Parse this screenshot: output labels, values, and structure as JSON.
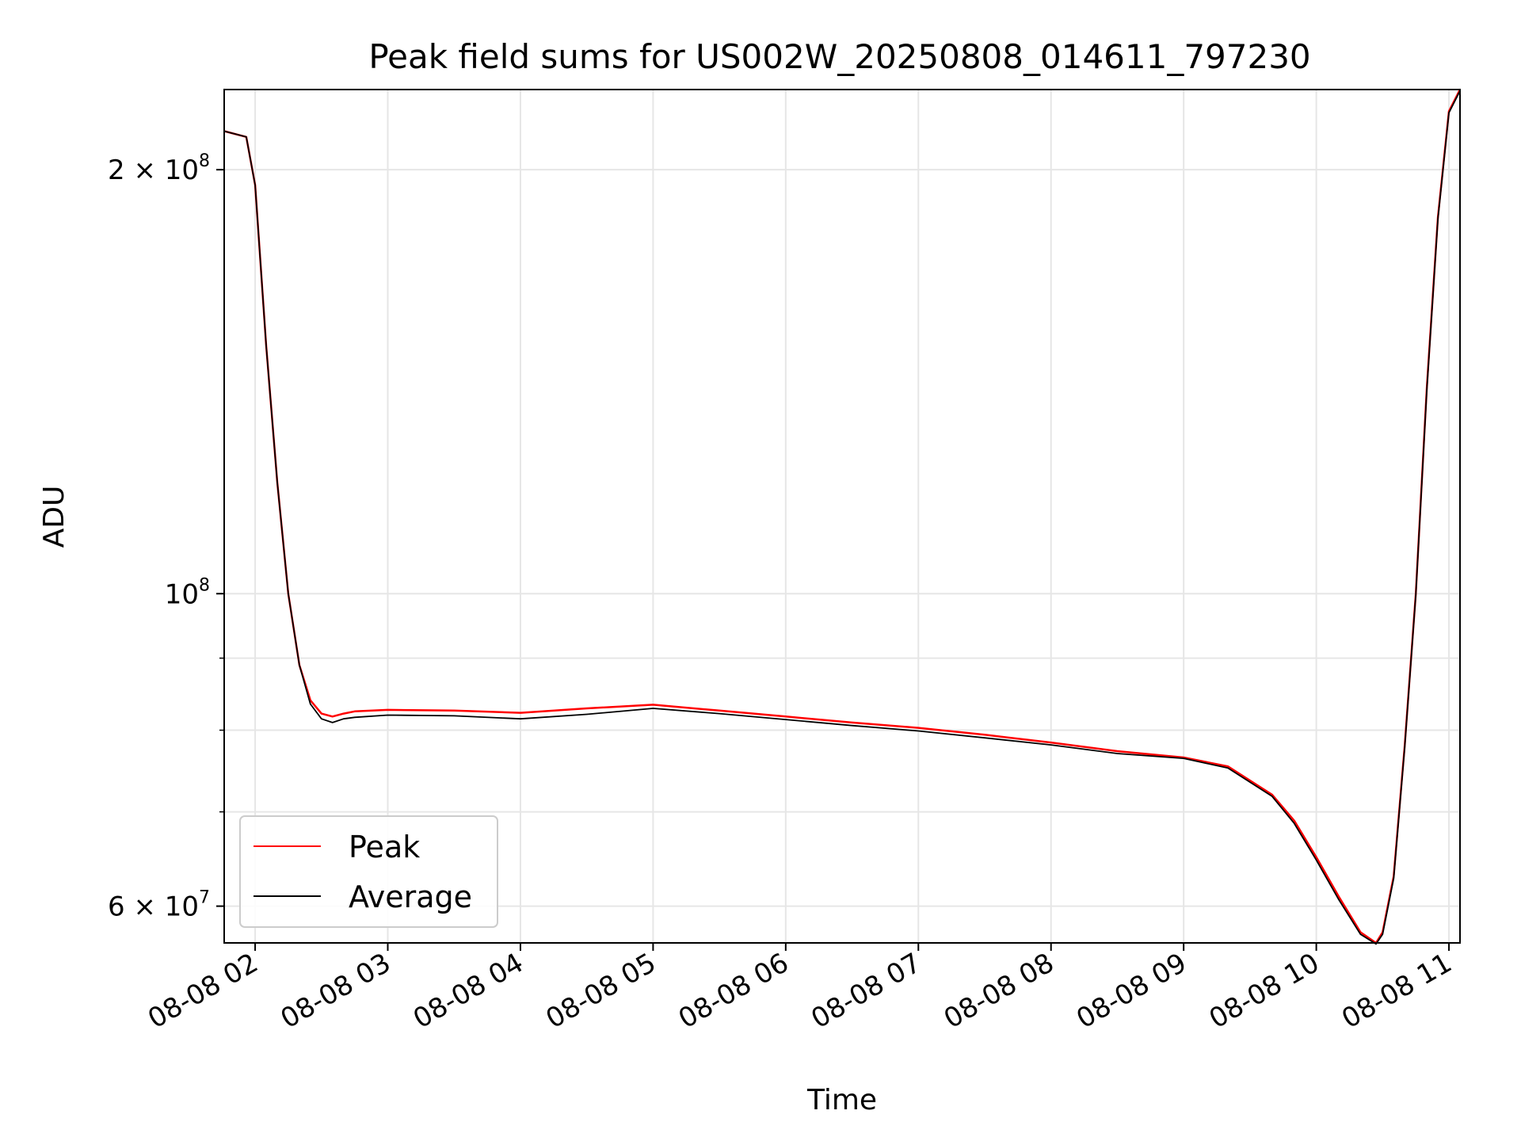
{
  "chart_data": {
    "type": "line",
    "title": "Peak field sums for US002W_20250808_014611_797230",
    "xlabel": "Time",
    "ylabel": "ADU",
    "y_scale": "log",
    "ylim": [
      56500000,
      228000000
    ],
    "xlim": [
      "2025-08-08 01:46",
      "2025-08-08 11:05"
    ],
    "grid": true,
    "legend_position": "lower-left",
    "x_ticks": [
      "08-08 02",
      "08-08 03",
      "08-08 04",
      "08-08 05",
      "08-08 06",
      "08-08 07",
      "08-08 08",
      "08-08 09",
      "08-08 10",
      "08-08 11"
    ],
    "y_ticks": [
      {
        "value": 200000000,
        "mantissa": "2",
        "exponent": "8"
      },
      {
        "value": 100000000,
        "mantissa": "",
        "exponent": "8"
      },
      {
        "value": 60000000,
        "mantissa": "6",
        "exponent": "7"
      }
    ],
    "series": [
      {
        "name": "Peak",
        "color": "#ff0000",
        "x": [
          "2025-08-08 01:46",
          "2025-08-08 01:56",
          "2025-08-08 02:00",
          "2025-08-08 02:05",
          "2025-08-08 02:10",
          "2025-08-08 02:15",
          "2025-08-08 02:20",
          "2025-08-08 02:25",
          "2025-08-08 02:30",
          "2025-08-08 02:35",
          "2025-08-08 02:40",
          "2025-08-08 02:45",
          "2025-08-08 03:00",
          "2025-08-08 03:30",
          "2025-08-08 04:00",
          "2025-08-08 04:30",
          "2025-08-08 05:00",
          "2025-08-08 05:30",
          "2025-08-08 06:00",
          "2025-08-08 06:30",
          "2025-08-08 07:00",
          "2025-08-08 07:30",
          "2025-08-08 08:00",
          "2025-08-08 08:30",
          "2025-08-08 09:00",
          "2025-08-08 09:20",
          "2025-08-08 09:40",
          "2025-08-08 09:50",
          "2025-08-08 10:00",
          "2025-08-08 10:10",
          "2025-08-08 10:20",
          "2025-08-08 10:27",
          "2025-08-08 10:30",
          "2025-08-08 10:35",
          "2025-08-08 10:40",
          "2025-08-08 10:45",
          "2025-08-08 10:50",
          "2025-08-08 10:55",
          "2025-08-08 11:00",
          "2025-08-08 11:05"
        ],
        "values": [
          213000000,
          211000000,
          195000000,
          150000000,
          120000000,
          100000000,
          89000000,
          84000000,
          82200000,
          81800000,
          82200000,
          82500000,
          82700000,
          82600000,
          82300000,
          82900000,
          83400000,
          82600000,
          81800000,
          81000000,
          80300000,
          79400000,
          78400000,
          77300000,
          76500000,
          75400000,
          72000000,
          69000000,
          65000000,
          61000000,
          57500000,
          56500000,
          57500000,
          63000000,
          78000000,
          100000000,
          140000000,
          185000000,
          220000000,
          228000000
        ]
      },
      {
        "name": "Average",
        "color": "#000000",
        "x": [
          "2025-08-08 01:46",
          "2025-08-08 01:56",
          "2025-08-08 02:00",
          "2025-08-08 02:05",
          "2025-08-08 02:10",
          "2025-08-08 02:15",
          "2025-08-08 02:20",
          "2025-08-08 02:25",
          "2025-08-08 02:30",
          "2025-08-08 02:35",
          "2025-08-08 02:40",
          "2025-08-08 02:45",
          "2025-08-08 03:00",
          "2025-08-08 03:30",
          "2025-08-08 04:00",
          "2025-08-08 04:30",
          "2025-08-08 05:00",
          "2025-08-08 05:30",
          "2025-08-08 06:00",
          "2025-08-08 06:30",
          "2025-08-08 07:00",
          "2025-08-08 07:30",
          "2025-08-08 08:00",
          "2025-08-08 08:30",
          "2025-08-08 09:00",
          "2025-08-08 09:20",
          "2025-08-08 09:40",
          "2025-08-08 09:50",
          "2025-08-08 10:00",
          "2025-08-08 10:10",
          "2025-08-08 10:20",
          "2025-08-08 10:27",
          "2025-08-08 10:30",
          "2025-08-08 10:35",
          "2025-08-08 10:40",
          "2025-08-08 10:45",
          "2025-08-08 10:50",
          "2025-08-08 10:55",
          "2025-08-08 11:00",
          "2025-08-08 11:05"
        ],
        "values": [
          213000000,
          211000000,
          195000000,
          150000000,
          120000000,
          100000000,
          89000000,
          83500000,
          81500000,
          81000000,
          81500000,
          81700000,
          82000000,
          81900000,
          81500000,
          82100000,
          82900000,
          82200000,
          81400000,
          80600000,
          79900000,
          79000000,
          78100000,
          77000000,
          76400000,
          75200000,
          71800000,
          68700000,
          64700000,
          60700000,
          57300000,
          56400000,
          57300000,
          62800000,
          77800000,
          99800000,
          139500000,
          184500000,
          219500000,
          227500000
        ]
      }
    ]
  }
}
